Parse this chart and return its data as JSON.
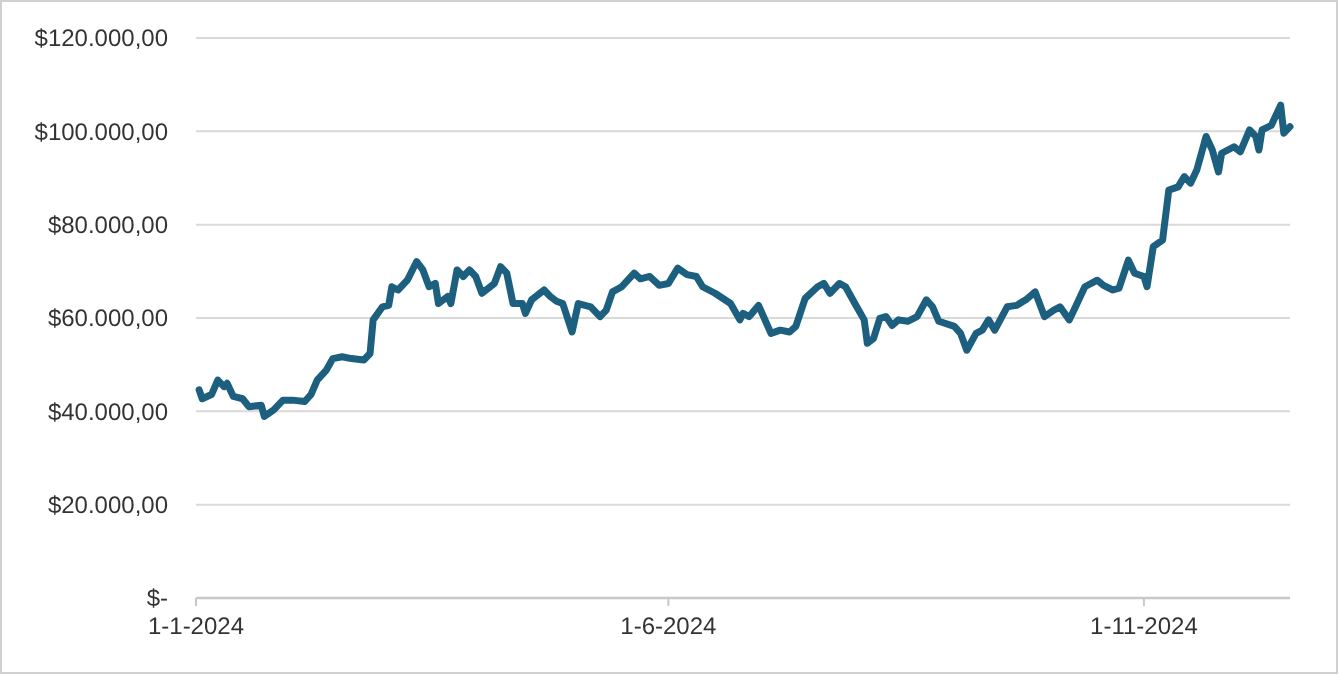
{
  "chart_data": {
    "type": "line",
    "xlim": [
      "2024-01-01",
      "2024-12-18"
    ],
    "xticks": [
      {
        "value": "2024-01-01",
        "label": "1-1-2024"
      },
      {
        "value": "2024-06-01",
        "label": "1-6-2024"
      },
      {
        "value": "2024-11-01",
        "label": "1-11-2024"
      }
    ],
    "ylim": [
      0,
      120000
    ],
    "yticks": [
      {
        "value": 0,
        "label": "$-"
      },
      {
        "value": 20000,
        "label": "$20.000,00"
      },
      {
        "value": 40000,
        "label": "$40.000,00"
      },
      {
        "value": 60000,
        "label": "$60.000,00"
      },
      {
        "value": 80000,
        "label": "$80.000,00"
      },
      {
        "value": 100000,
        "label": "$100.000,00"
      },
      {
        "value": 120000,
        "label": "$120.000,00"
      }
    ],
    "grid": "y",
    "marker": "none",
    "line_style": "solid",
    "x": [
      "2024-01-02",
      "2024-01-03",
      "2024-01-06",
      "2024-01-08",
      "2024-01-10",
      "2024-01-11",
      "2024-01-13",
      "2024-01-16",
      "2024-01-18",
      "2024-01-22",
      "2024-01-23",
      "2024-01-26",
      "2024-01-29",
      "2024-02-01",
      "2024-02-05",
      "2024-02-07",
      "2024-02-09",
      "2024-02-12",
      "2024-02-14",
      "2024-02-17",
      "2024-02-20",
      "2024-02-24",
      "2024-02-26",
      "2024-02-27",
      "2024-03-01",
      "2024-03-03",
      "2024-03-04",
      "2024-03-06",
      "2024-03-09",
      "2024-03-12",
      "2024-03-14",
      "2024-03-16",
      "2024-03-18",
      "2024-03-19",
      "2024-03-22",
      "2024-03-23",
      "2024-03-25",
      "2024-03-27",
      "2024-03-29",
      "2024-03-31",
      "2024-04-02",
      "2024-04-06",
      "2024-04-08",
      "2024-04-10",
      "2024-04-12",
      "2024-04-15",
      "2024-04-16",
      "2024-04-18",
      "2024-04-22",
      "2024-04-24",
      "2024-04-26",
      "2024-04-28",
      "2024-05-01",
      "2024-05-03",
      "2024-05-07",
      "2024-05-10",
      "2024-05-12",
      "2024-05-14",
      "2024-05-17",
      "2024-05-21",
      "2024-05-23",
      "2024-05-26",
      "2024-05-29",
      "2024-06-01",
      "2024-06-04",
      "2024-06-07",
      "2024-06-10",
      "2024-06-12",
      "2024-06-16",
      "2024-06-21",
      "2024-06-24",
      "2024-06-25",
      "2024-06-27",
      "2024-06-30",
      "2024-07-04",
      "2024-07-07",
      "2024-07-10",
      "2024-07-12",
      "2024-07-15",
      "2024-07-19",
      "2024-07-21",
      "2024-07-23",
      "2024-07-26",
      "2024-07-28",
      "2024-07-31",
      "2024-08-03",
      "2024-08-04",
      "2024-08-06",
      "2024-08-08",
      "2024-08-10",
      "2024-08-12",
      "2024-08-14",
      "2024-08-17",
      "2024-08-20",
      "2024-08-23",
      "2024-08-25",
      "2024-08-27",
      "2024-09-01",
      "2024-09-03",
      "2024-09-05",
      "2024-09-08",
      "2024-09-10",
      "2024-09-12",
      "2024-09-14",
      "2024-09-18",
      "2024-09-21",
      "2024-09-24",
      "2024-09-27",
      "2024-09-30",
      "2024-10-03",
      "2024-10-05",
      "2024-10-08",
      "2024-10-10",
      "2024-10-13",
      "2024-10-17",
      "2024-10-19",
      "2024-10-22",
      "2024-10-24",
      "2024-10-27",
      "2024-10-29",
      "2024-11-01",
      "2024-11-02",
      "2024-11-04",
      "2024-11-07",
      "2024-11-09",
      "2024-11-12",
      "2024-11-14",
      "2024-11-16",
      "2024-11-18",
      "2024-11-21",
      "2024-11-23",
      "2024-11-25",
      "2024-11-26",
      "2024-11-30",
      "2024-12-02",
      "2024-12-05",
      "2024-12-07",
      "2024-12-08",
      "2024-12-09",
      "2024-12-12",
      "2024-12-15",
      "2024-12-16",
      "2024-12-18"
    ],
    "series": [
      {
        "color": "#1c5f7f",
        "values": [
          44600,
          42700,
          43600,
          46700,
          45300,
          46000,
          43200,
          42700,
          41000,
          41300,
          38900,
          40300,
          42400,
          42400,
          42100,
          43600,
          46700,
          48900,
          51300,
          51700,
          51300,
          51000,
          52400,
          59600,
          62400,
          62700,
          66700,
          66000,
          68100,
          72100,
          70300,
          66700,
          67400,
          63100,
          64600,
          63100,
          70300,
          68900,
          70300,
          68900,
          65300,
          67400,
          71000,
          69600,
          63100,
          63100,
          61000,
          63900,
          66000,
          64600,
          63600,
          63100,
          57000,
          63100,
          62400,
          60300,
          61700,
          65600,
          66700,
          69600,
          68400,
          68900,
          67000,
          67400,
          70700,
          69300,
          68900,
          66700,
          65300,
          63100,
          59600,
          61000,
          60300,
          62700,
          56700,
          57400,
          57000,
          58200,
          64200,
          66700,
          67400,
          65300,
          67400,
          66700,
          63100,
          59600,
          54600,
          55600,
          59900,
          60300,
          58400,
          59600,
          59300,
          60300,
          63900,
          62400,
          59300,
          58200,
          56700,
          53100,
          56700,
          57400,
          59600,
          57400,
          62400,
          62700,
          63900,
          65600,
          60300,
          61700,
          62400,
          59600,
          62400,
          66700,
          68100,
          67000,
          66000,
          66400,
          72400,
          69600,
          68900,
          66700,
          75300,
          76700,
          87400,
          88100,
          90300,
          88900,
          91700,
          98900,
          96000,
          91300,
          95300,
          96700,
          95600,
          100300,
          98900,
          96000,
          100300,
          101300,
          105600,
          99600,
          101000
        ]
      }
    ]
  }
}
